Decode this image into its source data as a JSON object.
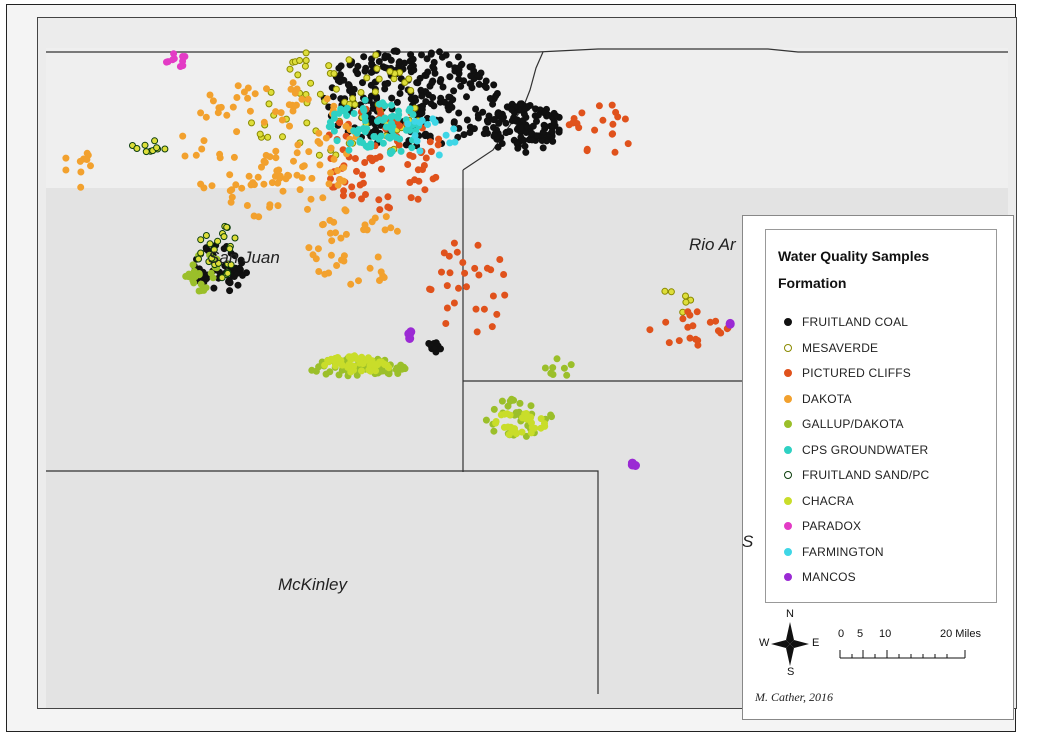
{
  "map": {
    "county_labels": {
      "san_juan": "San Juan",
      "rio_arriba": "Rio Ar",
      "mckinley": "McKinley",
      "sandoval_partial": "S"
    }
  },
  "legend": {
    "title": "Water Quality Samples",
    "subtitle": "Formation",
    "items": [
      {
        "label": "FRUITLAND COAL",
        "fill": "#111111",
        "stroke": "#111111"
      },
      {
        "label": "MESAVERDE",
        "fill": "#ffffff",
        "stroke": "#8a8a00"
      },
      {
        "label": "PICTURED CLIFFS",
        "fill": "#e0521c",
        "stroke": "#e0521c"
      },
      {
        "label": "DAKOTA",
        "fill": "#f2a12e",
        "stroke": "#f2a12e"
      },
      {
        "label": "GALLUP/DAKOTA",
        "fill": "#9bbf2a",
        "stroke": "#9bbf2a"
      },
      {
        "label": "CPS GROUNDWATER",
        "fill": "#2fd1c3",
        "stroke": "#2fd1c3"
      },
      {
        "label": "FRUITLAND SAND/PC",
        "fill": "#ffffff",
        "stroke": "#0d3d0d"
      },
      {
        "label": "CHACRA",
        "fill": "#c9dd2a",
        "stroke": "#c9dd2a"
      },
      {
        "label": "PARADOX",
        "fill": "#e33bc5",
        "stroke": "#e33bc5"
      },
      {
        "label": "FARMINGTON",
        "fill": "#3fd6e6",
        "stroke": "#3fd6e6"
      },
      {
        "label": "MANCOS",
        "fill": "#9b2ad4",
        "stroke": "#9b2ad4"
      }
    ]
  },
  "north_arrow": {
    "n": "N",
    "s": "S",
    "e": "E",
    "w": "W"
  },
  "scale_bar": {
    "ticks": [
      "0",
      "5",
      "10",
      "20 Miles"
    ]
  },
  "credit": "M. Cather, 2016"
}
